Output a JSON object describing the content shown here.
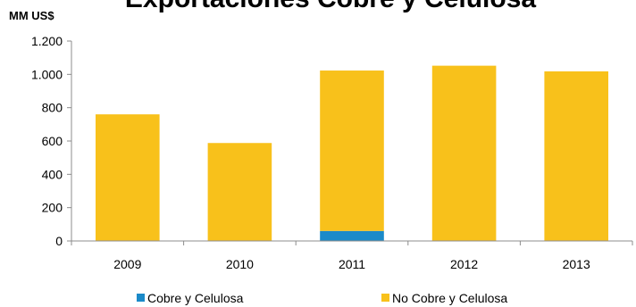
{
  "chart_data": {
    "type": "bar",
    "stacked": true,
    "title": "Exportaciones Cobre y Celulosa",
    "unit_label": "MM US$",
    "categories": [
      "2009",
      "2010",
      "2011",
      "2012",
      "2013"
    ],
    "series": [
      {
        "name": "Cobre y Celulosa",
        "color": "#1b8ac9",
        "values": [
          0,
          0,
          60,
          0,
          0
        ]
      },
      {
        "name": "No Cobre y Celulosa",
        "color": "#f8c11b",
        "values": [
          760,
          588,
          963,
          1052,
          1018
        ]
      }
    ],
    "ylim": [
      0,
      1200
    ],
    "yticks": [
      0,
      200,
      400,
      600,
      800,
      1000,
      1200
    ],
    "ytick_labels": [
      "0",
      "200",
      "400",
      "600",
      "800",
      "1.000",
      "1.200"
    ],
    "grid": false,
    "legend_position": "bottom"
  }
}
